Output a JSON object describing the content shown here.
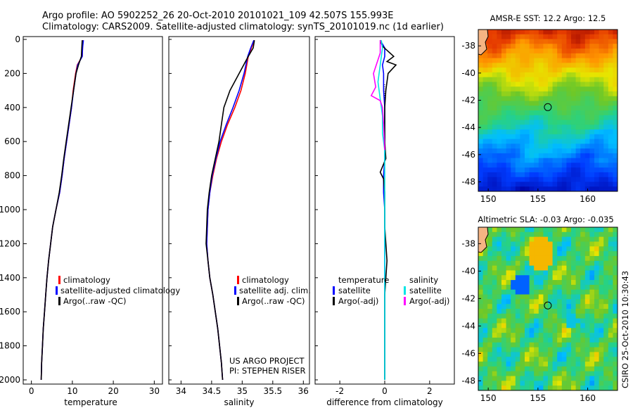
{
  "header": {
    "line1": "Argo profile: AO 5902252_26 20-Oct-2010 20101021_109 42.507S 155.993E",
    "line2": "Climatology: CARS2009. Satellite-adjusted climatology: synTS_20101019.nc (1d earlier)"
  },
  "colors": {
    "climatology": "#ff0000",
    "satellite": "#0000ff",
    "argo": "#000000",
    "salinity_satellite": "#00e5e5",
    "salinity_argo": "#ff00ff"
  },
  "chart_data": [
    {
      "type": "line",
      "name": "temperature-profile",
      "xlabel": "temperature",
      "xlim": [
        -2,
        32
      ],
      "ylim": [
        2050,
        0
      ],
      "xticks": [
        0,
        10,
        20,
        30
      ],
      "yticks": [
        0,
        200,
        400,
        600,
        800,
        1000,
        1200,
        1400,
        1600,
        1800,
        2000
      ],
      "legend": [
        "climatology",
        "satellite-adjusted climatology",
        "Argo(..raw -QC)"
      ],
      "legend_location": "lower-right",
      "series": [
        {
          "name": "climatology",
          "color": "#ff0000",
          "points": [
            [
              12.6,
              5
            ],
            [
              12.5,
              50
            ],
            [
              12.4,
              100
            ],
            [
              11.2,
              150
            ],
            [
              10.8,
              200
            ],
            [
              10.2,
              300
            ],
            [
              9.8,
              400
            ],
            [
              9.2,
              500
            ],
            [
              8.6,
              600
            ],
            [
              8.0,
              700
            ],
            [
              7.5,
              800
            ],
            [
              6.9,
              900
            ],
            [
              6.0,
              1000
            ],
            [
              5.2,
              1100
            ],
            [
              4.7,
              1200
            ],
            [
              4.2,
              1300
            ],
            [
              3.8,
              1400
            ],
            [
              3.5,
              1500
            ],
            [
              3.2,
              1600
            ],
            [
              2.9,
              1700
            ],
            [
              2.7,
              1800
            ],
            [
              2.5,
              1900
            ],
            [
              2.4,
              2000
            ]
          ]
        },
        {
          "name": "satellite-adjusted climatology",
          "color": "#0000ff",
          "points": [
            [
              12.7,
              5
            ],
            [
              12.5,
              50
            ],
            [
              12.4,
              100
            ],
            [
              11.3,
              150
            ],
            [
              10.9,
              200
            ],
            [
              10.3,
              300
            ],
            [
              9.8,
              400
            ],
            [
              9.2,
              500
            ],
            [
              8.6,
              600
            ],
            [
              8.0,
              700
            ],
            [
              7.5,
              800
            ],
            [
              6.9,
              900
            ],
            [
              6.0,
              1000
            ],
            [
              5.2,
              1100
            ],
            [
              4.7,
              1200
            ],
            [
              4.2,
              1300
            ],
            [
              3.8,
              1400
            ],
            [
              3.5,
              1500
            ],
            [
              3.2,
              1600
            ],
            [
              2.9,
              1700
            ],
            [
              2.7,
              1800
            ],
            [
              2.5,
              1900
            ],
            [
              2.4,
              2000
            ]
          ]
        },
        {
          "name": "Argo(..raw -QC)",
          "color": "#000000",
          "points": [
            [
              12.4,
              5
            ],
            [
              12.3,
              50
            ],
            [
              12.2,
              100
            ],
            [
              11.5,
              150
            ],
            [
              10.9,
              200
            ],
            [
              10.3,
              300
            ],
            [
              9.7,
              400
            ],
            [
              9.1,
              500
            ],
            [
              8.5,
              600
            ],
            [
              7.9,
              700
            ],
            [
              7.4,
              800
            ],
            [
              6.8,
              900
            ],
            [
              6.0,
              1000
            ],
            [
              5.2,
              1100
            ],
            [
              4.7,
              1200
            ],
            [
              4.2,
              1300
            ],
            [
              3.8,
              1400
            ],
            [
              3.5,
              1500
            ],
            [
              3.2,
              1600
            ],
            [
              2.9,
              1700
            ],
            [
              2.7,
              1800
            ],
            [
              2.5,
              1900
            ],
            [
              2.4,
              2000
            ]
          ]
        }
      ]
    },
    {
      "type": "line",
      "name": "salinity-profile",
      "xlabel": "salinity",
      "xlim": [
        33.8,
        36.1
      ],
      "ylim": [
        2050,
        0
      ],
      "xticks": [
        34,
        34.5,
        35,
        35.5,
        36
      ],
      "legend": [
        "climatology",
        "satellite adj. clim.",
        "Argo(..raw -QC)"
      ],
      "legend_location": "lower-right",
      "annotation": [
        "US ARGO PROJECT",
        "PI: STEPHEN RISER"
      ],
      "series": [
        {
          "name": "climatology",
          "color": "#ff0000",
          "points": [
            [
              35.2,
              5
            ],
            [
              35.15,
              50
            ],
            [
              35.1,
              100
            ],
            [
              35.05,
              200
            ],
            [
              34.98,
              300
            ],
            [
              34.88,
              400
            ],
            [
              34.76,
              500
            ],
            [
              34.66,
              600
            ],
            [
              34.58,
              700
            ],
            [
              34.52,
              800
            ],
            [
              34.47,
              900
            ],
            [
              34.44,
              1000
            ],
            [
              34.43,
              1100
            ],
            [
              34.42,
              1200
            ],
            [
              34.44,
              1300
            ],
            [
              34.47,
              1400
            ],
            [
              34.52,
              1500
            ],
            [
              34.56,
              1600
            ],
            [
              34.6,
              1700
            ],
            [
              34.63,
              1800
            ],
            [
              34.66,
              1900
            ],
            [
              34.68,
              2000
            ]
          ]
        },
        {
          "name": "satellite adj. clim.",
          "color": "#0000ff",
          "points": [
            [
              35.19,
              5
            ],
            [
              35.14,
              50
            ],
            [
              35.09,
              100
            ],
            [
              35.03,
              200
            ],
            [
              34.95,
              300
            ],
            [
              34.85,
              400
            ],
            [
              34.74,
              500
            ],
            [
              34.64,
              600
            ],
            [
              34.57,
              700
            ],
            [
              34.51,
              800
            ],
            [
              34.47,
              900
            ],
            [
              34.44,
              1000
            ],
            [
              34.43,
              1100
            ],
            [
              34.42,
              1200
            ],
            [
              34.44,
              1300
            ],
            [
              34.47,
              1400
            ],
            [
              34.52,
              1500
            ],
            [
              34.56,
              1600
            ],
            [
              34.6,
              1700
            ],
            [
              34.63,
              1800
            ],
            [
              34.66,
              1900
            ],
            [
              34.68,
              2000
            ]
          ]
        },
        {
          "name": "Argo(..raw -QC)",
          "color": "#000000",
          "points": [
            [
              35.2,
              5
            ],
            [
              35.18,
              50
            ],
            [
              35.1,
              100
            ],
            [
              34.95,
              200
            ],
            [
              34.8,
              300
            ],
            [
              34.7,
              400
            ],
            [
              34.66,
              500
            ],
            [
              34.62,
              600
            ],
            [
              34.56,
              700
            ],
            [
              34.5,
              800
            ],
            [
              34.46,
              900
            ],
            [
              34.43,
              1000
            ],
            [
              34.42,
              1100
            ],
            [
              34.41,
              1200
            ],
            [
              34.44,
              1300
            ],
            [
              34.47,
              1400
            ],
            [
              34.52,
              1500
            ],
            [
              34.56,
              1600
            ],
            [
              34.6,
              1700
            ],
            [
              34.63,
              1800
            ],
            [
              34.66,
              1900
            ],
            [
              34.68,
              2000
            ]
          ]
        }
      ]
    },
    {
      "type": "line",
      "name": "difference-profile",
      "xlabel": "difference from climatology",
      "xlim": [
        -3.1,
        3.1
      ],
      "ylim": [
        2050,
        0
      ],
      "xticks": [
        -2,
        0,
        2
      ],
      "legend_temperature": {
        "heading": "temperature",
        "items": [
          "satellite",
          "Argo(-adj)"
        ]
      },
      "legend_salinity": {
        "heading": "salinity",
        "items": [
          "satellite",
          "Argo(-adj)"
        ]
      },
      "series": [
        {
          "name": "temperature satellite",
          "color": "#0000ff",
          "points": [
            [
              -0.2,
              5
            ],
            [
              0,
              50
            ],
            [
              0,
              100
            ],
            [
              -0.1,
              150
            ],
            [
              -0.05,
              200
            ],
            [
              -0.05,
              300
            ],
            [
              0,
              400
            ],
            [
              0,
              500
            ],
            [
              0,
              600
            ],
            [
              0,
              700
            ],
            [
              -0.05,
              800
            ],
            [
              -0.05,
              900
            ],
            [
              0,
              1000
            ],
            [
              0,
              1100
            ],
            [
              0,
              1200
            ],
            [
              0,
              1300
            ],
            [
              0,
              1400
            ],
            [
              0,
              1500
            ],
            [
              0,
              1600
            ],
            [
              0,
              1700
            ],
            [
              0,
              1800
            ],
            [
              0,
              1900
            ],
            [
              0,
              2000
            ]
          ]
        },
        {
          "name": "temperature Argo(-adj)",
          "color": "#000000",
          "points": [
            [
              -0.2,
              5
            ],
            [
              -0.1,
              40
            ],
            [
              0.4,
              100
            ],
            [
              0.1,
              130
            ],
            [
              0.5,
              150
            ],
            [
              0.15,
              200
            ],
            [
              0.05,
              300
            ],
            [
              0,
              400
            ],
            [
              0,
              500
            ],
            [
              0,
              600
            ],
            [
              0.05,
              700
            ],
            [
              -0.2,
              780
            ],
            [
              -0.05,
              820
            ],
            [
              0,
              900
            ],
            [
              0,
              1000
            ],
            [
              0,
              1100
            ],
            [
              0.1,
              1300
            ],
            [
              0.05,
              1400
            ],
            [
              0,
              1500
            ],
            [
              0,
              1600
            ],
            [
              0,
              1800
            ],
            [
              0,
              2000
            ]
          ]
        },
        {
          "name": "salinity satellite",
          "color": "#00e5e5",
          "points": [
            [
              -0.15,
              5
            ],
            [
              -0.1,
              50
            ],
            [
              -0.2,
              150
            ],
            [
              -0.3,
              250
            ],
            [
              -0.2,
              350
            ],
            [
              -0.1,
              450
            ],
            [
              -0.1,
              550
            ],
            [
              0,
              650
            ],
            [
              0,
              750
            ],
            [
              0,
              850
            ],
            [
              0,
              1000
            ],
            [
              0,
              1200
            ],
            [
              0,
              1400
            ],
            [
              0,
              1600
            ],
            [
              0,
              1800
            ],
            [
              0,
              2000
            ]
          ]
        },
        {
          "name": "salinity Argo(-adj)",
          "color": "#ff00ff",
          "points": [
            [
              -0.2,
              5
            ],
            [
              -0.2,
              80
            ],
            [
              -0.5,
              200
            ],
            [
              -0.4,
              280
            ],
            [
              -0.6,
              330
            ],
            [
              -0.2,
              360
            ],
            [
              -0.1,
              400
            ],
            [
              -0.05,
              500
            ],
            [
              0,
              650
            ]
          ]
        }
      ]
    },
    {
      "type": "heatmap",
      "name": "sst-map",
      "title": "AMSR-E SST: 12.2 Argo: 12.5",
      "xticks": [
        150,
        155,
        160
      ],
      "yticks": [
        -38,
        -40,
        -42,
        -44,
        -46,
        -48
      ],
      "xlim": [
        149,
        163
      ],
      "ylim": [
        -48.7,
        -36.8
      ],
      "argo_position": [
        155.993,
        -42.507
      ]
    },
    {
      "type": "heatmap",
      "name": "sla-map",
      "title": "Altimetric SLA: -0.03 Argo: -0.035",
      "xticks": [
        150,
        155,
        160
      ],
      "yticks": [
        -38,
        -40,
        -42,
        -44,
        -46,
        -48
      ],
      "xlim": [
        149,
        163
      ],
      "ylim": [
        -48.7,
        -36.8
      ],
      "argo_position": [
        155.993,
        -42.507
      ]
    }
  ],
  "credit": "CSIRO 25-Oct-2010 10:30:43"
}
